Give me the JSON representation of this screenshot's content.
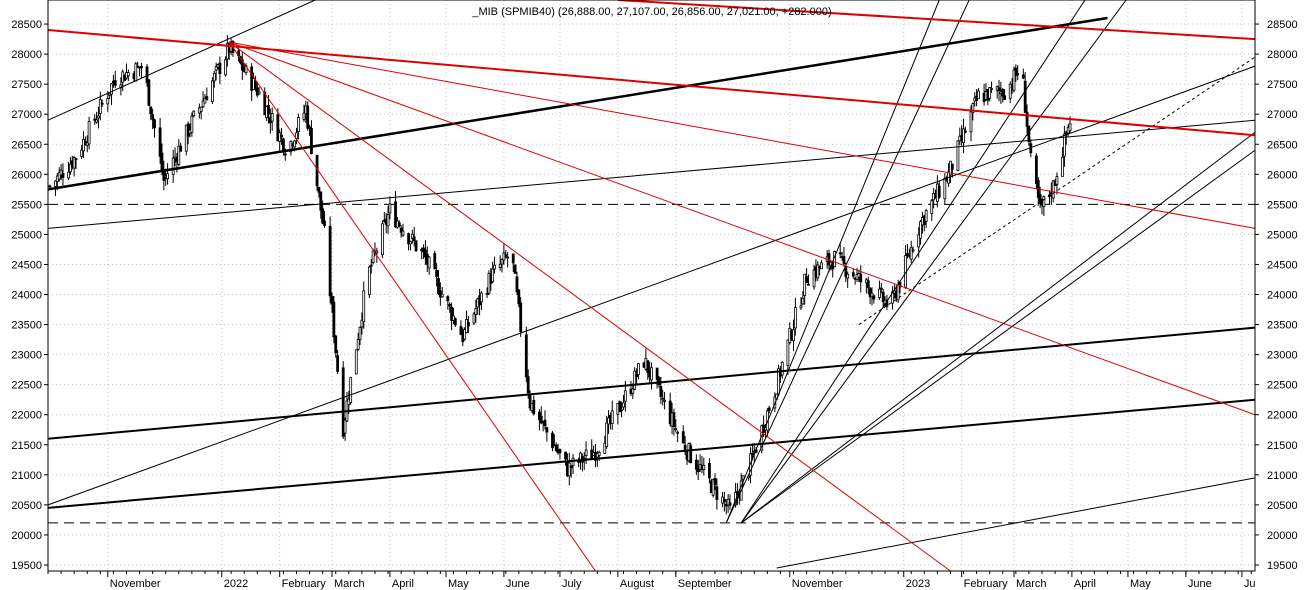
{
  "chart_data": {
    "type": "candlestick",
    "title": "_MIB (SPMIB40) (26,888.00, 27,107.00, 26,856.00, 27,021.00, +282.000)",
    "ylim": [
      19400,
      28900
    ],
    "y_ticks": [
      19500,
      20000,
      20500,
      21000,
      21500,
      22000,
      22500,
      23000,
      23500,
      24000,
      24500,
      25000,
      25500,
      26000,
      26500,
      27000,
      27500,
      28000,
      28500
    ],
    "x_labels": [
      "November",
      "2022",
      "February",
      "March",
      "April",
      "May",
      "June",
      "July",
      "August",
      "September",
      "November",
      "2023",
      "February",
      "March",
      "April",
      "May",
      "June",
      "Ju"
    ],
    "x_label_dates": [
      "2021-11-01",
      "2022-01-01",
      "2022-02-01",
      "2022-03-01",
      "2022-04-01",
      "2022-05-01",
      "2022-06-01",
      "2022-07-01",
      "2022-08-01",
      "2022-09-01",
      "2022-11-01",
      "2023-01-01",
      "2023-02-01",
      "2023-03-01",
      "2023-04-01",
      "2023-05-01",
      "2023-06-01",
      "2023-07-01"
    ],
    "x_start": "2021-09-30",
    "x_end": "2023-07-08",
    "horizontal_levels": [
      25500,
      20200
    ],
    "price_path": [
      [
        "2021-10-01",
        25800
      ],
      [
        "2021-10-15",
        26300
      ],
      [
        "2021-11-05",
        27600
      ],
      [
        "2021-11-20",
        27800
      ],
      [
        "2021-12-01",
        25900
      ],
      [
        "2021-12-15",
        26800
      ],
      [
        "2022-01-05",
        28100
      ],
      [
        "2022-01-20",
        27400
      ],
      [
        "2022-02-05",
        26400
      ],
      [
        "2022-02-15",
        27100
      ],
      [
        "2022-02-25",
        25000
      ],
      [
        "2022-03-07",
        21800
      ],
      [
        "2022-03-20",
        24300
      ],
      [
        "2022-04-01",
        25400
      ],
      [
        "2022-04-20",
        24600
      ],
      [
        "2022-05-10",
        23300
      ],
      [
        "2022-05-25",
        24300
      ],
      [
        "2022-06-05",
        24700
      ],
      [
        "2022-06-15",
        22200
      ],
      [
        "2022-07-05",
        21100
      ],
      [
        "2022-07-20",
        21400
      ],
      [
        "2022-08-05",
        22300
      ],
      [
        "2022-08-15",
        22900
      ],
      [
        "2022-09-05",
        21500
      ],
      [
        "2022-09-30",
        20400
      ],
      [
        "2022-10-10",
        21100
      ],
      [
        "2022-10-25",
        22500
      ],
      [
        "2022-11-10",
        24300
      ],
      [
        "2022-11-25",
        24600
      ],
      [
        "2022-12-10",
        24200
      ],
      [
        "2022-12-25",
        23800
      ],
      [
        "2023-01-10",
        25200
      ],
      [
        "2023-01-25",
        26000
      ],
      [
        "2023-02-10",
        27300
      ],
      [
        "2023-02-25",
        27400
      ],
      [
        "2023-03-05",
        27800
      ],
      [
        "2023-03-10",
        26200
      ],
      [
        "2023-03-15",
        25400
      ],
      [
        "2023-03-22",
        25800
      ],
      [
        "2023-04-01",
        27021
      ]
    ],
    "trendlines": [
      {
        "color": "#000000",
        "width": 2.5,
        "p1": [
          "2021-09-30",
          25750
        ],
        "p2": [
          "2023-04-20",
          28600
        ]
      },
      {
        "color": "#000000",
        "width": 2,
        "p1": [
          "2021-09-30",
          21600
        ],
        "p2": [
          "2023-07-08",
          23450
        ]
      },
      {
        "color": "#000000",
        "width": 2,
        "p1": [
          "2021-09-30",
          20450
        ],
        "p2": [
          "2023-07-08",
          22250
        ]
      },
      {
        "color": "#000000",
        "width": 1,
        "p1": [
          "2021-09-30",
          25100
        ],
        "p2": [
          "2023-07-08",
          26900
        ]
      },
      {
        "color": "#000000",
        "width": 1,
        "p1": [
          "2021-09-30",
          20500
        ],
        "p2": [
          "2023-07-08",
          27800
        ]
      },
      {
        "color": "#000000",
        "width": 1,
        "p1": [
          "2022-10-25",
          19450
        ],
        "p2": [
          "2023-07-08",
          20950
        ]
      },
      {
        "color": "#000000",
        "width": 1,
        "p1": [
          "2021-09-30",
          26900
        ],
        "p2": [
          "2022-02-20",
          28900
        ]
      },
      {
        "color": "#000000",
        "width": 1,
        "p1": [
          "2022-09-28",
          20200
        ],
        "p2": [
          "2023-01-20",
          28900
        ]
      },
      {
        "color": "#000000",
        "width": 1,
        "p1": [
          "2022-09-28",
          20200
        ],
        "p2": [
          "2023-02-05",
          28900
        ]
      },
      {
        "color": "#000000",
        "width": 1,
        "p1": [
          "2022-10-06",
          20200
        ],
        "p2": [
          "2023-04-08",
          28900
        ]
      },
      {
        "color": "#000000",
        "width": 1,
        "p1": [
          "2022-10-06",
          20200
        ],
        "p2": [
          "2023-04-30",
          28900
        ]
      },
      {
        "color": "#000000",
        "width": 1,
        "p1": [
          "2022-10-06",
          20200
        ],
        "p2": [
          "2023-07-08",
          26700
        ]
      },
      {
        "color": "#000000",
        "width": 1,
        "p1": [
          "2022-10-06",
          20200
        ],
        "p2": [
          "2023-07-08",
          26400
        ]
      },
      {
        "color": "#000000",
        "width": 1,
        "dash": "3,3",
        "p1": [
          "2022-12-08",
          23500
        ],
        "p2": [
          "2023-07-08",
          27950
        ]
      },
      {
        "color": "#dd0000",
        "width": 2,
        "p1": [
          "2021-09-30",
          28400
        ],
        "p2": [
          "2023-07-08",
          26650
        ]
      },
      {
        "color": "#dd0000",
        "width": 2,
        "p1": [
          "2022-08-01",
          28900
        ],
        "p2": [
          "2023-07-08",
          28250
        ]
      },
      {
        "color": "#dd0000",
        "width": 1,
        "p1": [
          "2022-01-05",
          28200
        ],
        "p2": [
          "2023-07-08",
          25100
        ]
      },
      {
        "color": "#dd0000",
        "width": 1,
        "p1": [
          "2022-01-05",
          28200
        ],
        "p2": [
          "2023-07-08",
          22000
        ]
      },
      {
        "color": "#dd0000",
        "width": 1,
        "p1": [
          "2022-01-05",
          28200
        ],
        "p2": [
          "2022-07-20",
          19400
        ]
      },
      {
        "color": "#dd0000",
        "width": 1,
        "p1": [
          "2022-01-05",
          28200
        ],
        "p2": [
          "2023-01-26",
          19400
        ]
      }
    ]
  }
}
